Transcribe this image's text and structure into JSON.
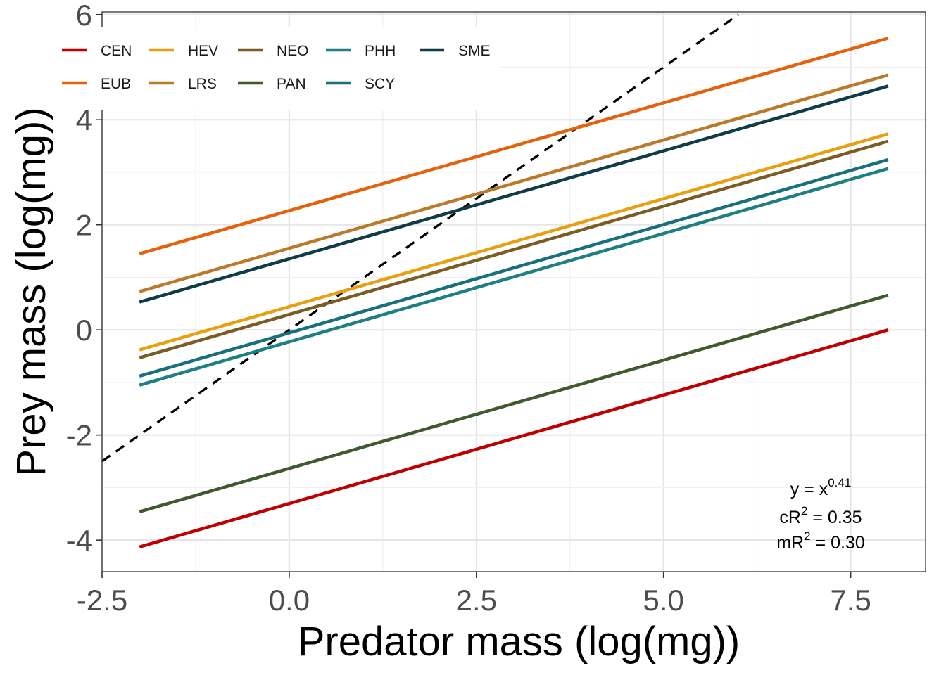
{
  "chart_data": {
    "type": "line",
    "xlabel": "Predator mass (log(mg))",
    "ylabel": "Prey mass (log(mg))",
    "xlim": [
      -2.5,
      8.5
    ],
    "ylim": [
      -4.6,
      6.05
    ],
    "x_ticks": [
      -2.5,
      0.0,
      2.5,
      5.0,
      7.5
    ],
    "x_tick_labels": [
      "-2.5",
      "0.0",
      "2.5",
      "5.0",
      "7.5"
    ],
    "y_ticks": [
      -4,
      -2,
      0,
      2,
      4,
      6
    ],
    "y_tick_labels": [
      "-4",
      "-2",
      "0",
      "2",
      "4",
      "6"
    ],
    "grid": true,
    "legend_position": "top-left",
    "series": [
      {
        "name": "CEN",
        "color": "#c00000",
        "x": [
          -2.0,
          8.0
        ],
        "y": [
          -4.13,
          0.0
        ]
      },
      {
        "name": "EUB",
        "color": "#e4620c",
        "x": [
          -2.0,
          8.0
        ],
        "y": [
          1.45,
          5.55
        ]
      },
      {
        "name": "HEV",
        "color": "#e8a010",
        "x": [
          -2.0,
          8.0
        ],
        "y": [
          -0.38,
          3.73
        ]
      },
      {
        "name": "LRS",
        "color": "#bb7a2a",
        "x": [
          -2.0,
          8.0
        ],
        "y": [
          0.73,
          4.85
        ]
      },
      {
        "name": "NEO",
        "color": "#7a5c24",
        "x": [
          -2.0,
          8.0
        ],
        "y": [
          -0.53,
          3.59
        ]
      },
      {
        "name": "PAN",
        "color": "#3f5a2f",
        "x": [
          -2.0,
          8.0
        ],
        "y": [
          -3.46,
          0.66
        ]
      },
      {
        "name": "PHH",
        "color": "#1e8080",
        "x": [
          -2.0,
          8.0
        ],
        "y": [
          -1.05,
          3.07
        ]
      },
      {
        "name": "SCY",
        "color": "#17707a",
        "x": [
          -2.0,
          8.0
        ],
        "y": [
          -0.88,
          3.24
        ]
      },
      {
        "name": "SME",
        "color": "#0f3c46",
        "x": [
          -2.0,
          8.0
        ],
        "y": [
          0.53,
          4.64
        ]
      }
    ],
    "reference_line": {
      "style": "dashed",
      "color": "#000000",
      "x": [
        -2.5,
        6.0
      ],
      "y": [
        -2.5,
        6.0
      ]
    },
    "annotation": {
      "line1_base": "y = x",
      "line1_sup": "0.41",
      "line2_base": "cR",
      "line2_sup": "2",
      "line2_rest": " = 0.35",
      "line3_base": "mR",
      "line3_sup": "2",
      "line3_rest": " = 0.30"
    }
  }
}
